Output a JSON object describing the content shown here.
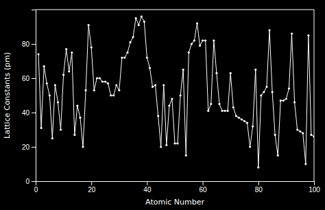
{
  "chart_data": {
    "type": "line",
    "xlabel": "Atomic Number",
    "ylabel": "Lattice Constants (pm)",
    "color": "#ffffff",
    "marker": "circle",
    "grid": false,
    "xlim": [
      0,
      100
    ],
    "ylim": [
      0,
      100
    ],
    "xticks": [
      0,
      20,
      40,
      60,
      80,
      100
    ],
    "yticks": [
      0,
      20,
      40,
      60,
      80
    ],
    "x": [
      1,
      2,
      3,
      4,
      5,
      6,
      7,
      8,
      9,
      10,
      11,
      12,
      13,
      14,
      15,
      16,
      17,
      18,
      19,
      20,
      21,
      22,
      23,
      24,
      25,
      26,
      27,
      28,
      29,
      30,
      31,
      32,
      33,
      34,
      35,
      36,
      37,
      38,
      39,
      40,
      41,
      42,
      43,
      44,
      45,
      46,
      47,
      48,
      49,
      50,
      51,
      52,
      53,
      54,
      55,
      56,
      57,
      58,
      59,
      60,
      61,
      62,
      63,
      64,
      65,
      66,
      67,
      68,
      69,
      70,
      71,
      72,
      73,
      74,
      75,
      76,
      77,
      78,
      79,
      80,
      81,
      82,
      83,
      84,
      85,
      86,
      87,
      88,
      89,
      90,
      91,
      92,
      93,
      94,
      95,
      96,
      97,
      98,
      99,
      100
    ],
    "values": [
      74,
      31,
      67,
      57,
      50,
      25,
      56,
      46,
      30,
      62,
      77,
      64,
      75,
      27,
      44,
      37,
      20,
      53,
      91,
      78,
      53,
      60,
      60,
      58,
      58,
      57,
      50,
      50,
      56,
      53,
      72,
      72,
      75,
      81,
      84,
      95,
      91,
      96,
      93,
      72,
      66,
      55,
      56,
      38,
      20,
      56,
      21,
      44,
      48,
      22,
      22,
      50,
      65,
      15,
      75,
      80,
      82,
      92,
      79,
      82,
      82,
      41,
      45,
      82,
      63,
      45,
      41,
      41,
      41,
      63,
      43,
      38,
      37,
      36,
      35,
      34,
      20,
      32,
      65,
      8,
      50,
      52,
      55,
      88,
      52,
      27,
      15,
      47,
      47,
      48,
      54,
      86,
      46,
      30,
      29,
      28,
      10,
      85,
      27,
      26
    ]
  }
}
